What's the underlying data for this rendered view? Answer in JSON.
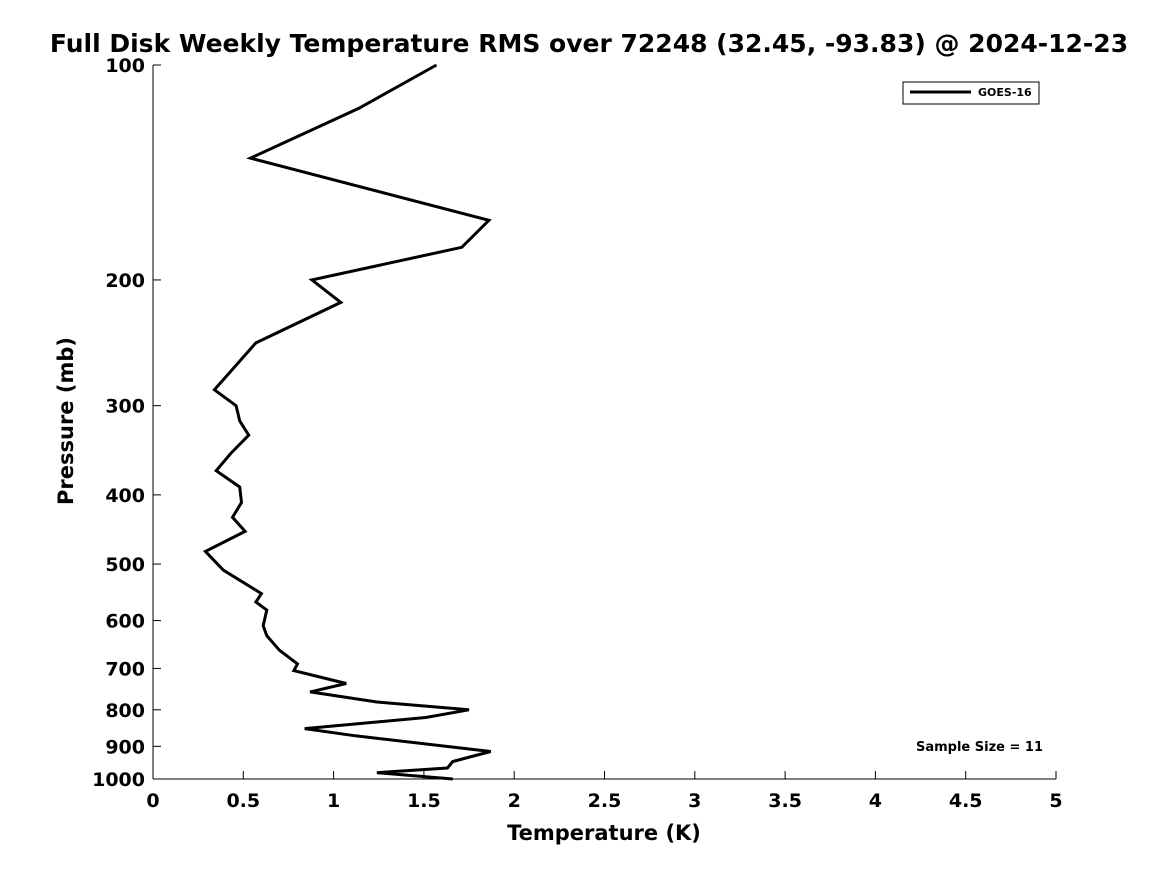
{
  "chart_data": {
    "type": "line",
    "title": "Full Disk Weekly Temperature RMS over 72248 (32.45, -93.83) @ 2024-12-23",
    "xlabel": "Temperature (K)",
    "ylabel": "Pressure (mb)",
    "xlim": [
      0,
      5
    ],
    "ylim": [
      1000,
      100
    ],
    "y_scale": "log",
    "y_inverted": true,
    "x_ticks": [
      "0",
      "0.5",
      "1",
      "1.5",
      "2",
      "2.5",
      "3",
      "3.5",
      "4",
      "4.5",
      "5"
    ],
    "y_ticks": [
      "100",
      "200",
      "300",
      "400",
      "500",
      "600",
      "700",
      "800",
      "900",
      "1000"
    ],
    "grid": false,
    "legend_position": "top-right",
    "annotation": "Sample Size = 11",
    "series": [
      {
        "name": "GOES-16",
        "color": "#000000",
        "points": [
          {
            "x": 1.57,
            "y": 100
          },
          {
            "x": 1.14,
            "y": 115
          },
          {
            "x": 0.54,
            "y": 135
          },
          {
            "x": 1.86,
            "y": 165
          },
          {
            "x": 1.71,
            "y": 180
          },
          {
            "x": 0.88,
            "y": 200
          },
          {
            "x": 1.04,
            "y": 215
          },
          {
            "x": 0.57,
            "y": 245
          },
          {
            "x": 0.34,
            "y": 285
          },
          {
            "x": 0.46,
            "y": 300
          },
          {
            "x": 0.48,
            "y": 315
          },
          {
            "x": 0.53,
            "y": 330
          },
          {
            "x": 0.43,
            "y": 350
          },
          {
            "x": 0.35,
            "y": 370
          },
          {
            "x": 0.48,
            "y": 390
          },
          {
            "x": 0.49,
            "y": 410
          },
          {
            "x": 0.44,
            "y": 430
          },
          {
            "x": 0.51,
            "y": 450
          },
          {
            "x": 0.29,
            "y": 480
          },
          {
            "x": 0.39,
            "y": 510
          },
          {
            "x": 0.6,
            "y": 550
          },
          {
            "x": 0.57,
            "y": 565
          },
          {
            "x": 0.63,
            "y": 580
          },
          {
            "x": 0.61,
            "y": 610
          },
          {
            "x": 0.63,
            "y": 630
          },
          {
            "x": 0.7,
            "y": 660
          },
          {
            "x": 0.8,
            "y": 690
          },
          {
            "x": 0.78,
            "y": 705
          },
          {
            "x": 1.07,
            "y": 735
          },
          {
            "x": 0.87,
            "y": 755
          },
          {
            "x": 1.24,
            "y": 780
          },
          {
            "x": 1.75,
            "y": 800
          },
          {
            "x": 1.51,
            "y": 820
          },
          {
            "x": 0.84,
            "y": 850
          },
          {
            "x": 1.12,
            "y": 870
          },
          {
            "x": 1.87,
            "y": 915
          },
          {
            "x": 1.66,
            "y": 945
          },
          {
            "x": 1.63,
            "y": 965
          },
          {
            "x": 1.24,
            "y": 980
          },
          {
            "x": 1.66,
            "y": 1000
          }
        ]
      }
    ]
  }
}
